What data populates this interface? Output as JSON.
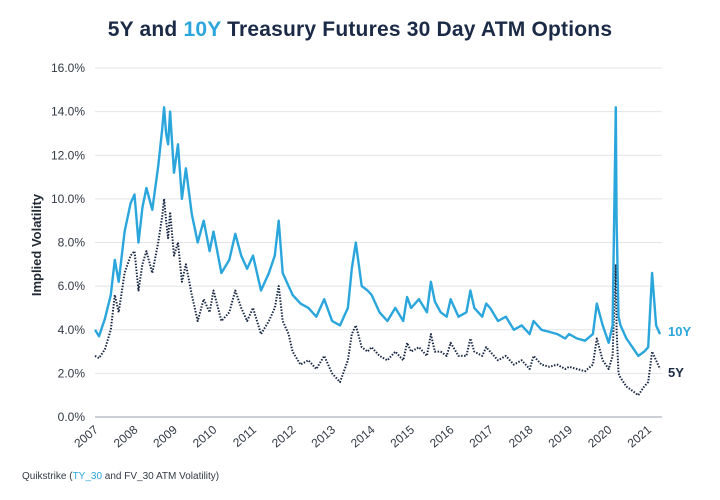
{
  "chart_data": {
    "type": "line",
    "title": {
      "part1": "5Y and ",
      "part2": "10Y",
      "part3": " Treasury Futures 30 Day ATM Options"
    },
    "ylabel": "Implied Volatility",
    "xlabel": "",
    "ylim": [
      0,
      16
    ],
    "xlim": [
      2007.0,
      2021.35
    ],
    "y_ticks": [
      "0.0%",
      "2.0%",
      "4.0%",
      "6.0%",
      "8.0%",
      "10.0%",
      "12.0%",
      "14.0%",
      "16.0%"
    ],
    "y_tick_values": [
      0,
      2,
      4,
      6,
      8,
      10,
      12,
      14,
      16
    ],
    "x_ticks": [
      "2007",
      "2008",
      "2009",
      "2010",
      "2011",
      "2012",
      "2013",
      "2014",
      "2015",
      "2016",
      "2017",
      "2018",
      "2019",
      "2020",
      "2021"
    ],
    "x_tick_values": [
      2007,
      2008,
      2009,
      2010,
      2011,
      2012,
      2013,
      2014,
      2015,
      2016,
      2017,
      2018,
      2019,
      2020,
      2021
    ],
    "grid": "horizontal",
    "series": [
      {
        "name": "10Y",
        "color": "#2aa6dc",
        "style": "solid",
        "x": [
          2007.0,
          2007.1,
          2007.25,
          2007.4,
          2007.5,
          2007.6,
          2007.75,
          2007.9,
          2008.0,
          2008.1,
          2008.2,
          2008.3,
          2008.45,
          2008.6,
          2008.7,
          2008.75,
          2008.8,
          2008.85,
          2008.9,
          2009.0,
          2009.1,
          2009.2,
          2009.3,
          2009.45,
          2009.6,
          2009.75,
          2009.9,
          2010.0,
          2010.2,
          2010.4,
          2010.55,
          2010.7,
          2010.85,
          2011.0,
          2011.2,
          2011.4,
          2011.55,
          2011.65,
          2011.75,
          2011.9,
          2012.0,
          2012.2,
          2012.4,
          2012.6,
          2012.8,
          2013.0,
          2013.2,
          2013.4,
          2013.5,
          2013.6,
          2013.75,
          2013.9,
          2014.0,
          2014.2,
          2014.4,
          2014.6,
          2014.8,
          2014.9,
          2015.0,
          2015.2,
          2015.4,
          2015.5,
          2015.6,
          2015.75,
          2015.9,
          2016.0,
          2016.2,
          2016.4,
          2016.5,
          2016.6,
          2016.8,
          2016.9,
          2017.0,
          2017.2,
          2017.4,
          2017.6,
          2017.8,
          2018.0,
          2018.1,
          2018.3,
          2018.5,
          2018.7,
          2018.9,
          2019.0,
          2019.2,
          2019.4,
          2019.6,
          2019.7,
          2019.85,
          2020.0,
          2020.1,
          2020.18,
          2020.2,
          2020.25,
          2020.3,
          2020.45,
          2020.6,
          2020.75,
          2020.9,
          2021.0,
          2021.1,
          2021.2,
          2021.3
        ],
        "values": [
          4.0,
          3.7,
          4.5,
          5.6,
          7.2,
          6.2,
          8.5,
          9.8,
          10.2,
          8.0,
          9.6,
          10.5,
          9.5,
          11.5,
          13.2,
          14.2,
          13.0,
          12.5,
          14.0,
          11.2,
          12.5,
          10.0,
          11.4,
          9.3,
          8.0,
          9.0,
          7.6,
          8.5,
          6.6,
          7.2,
          8.4,
          7.4,
          6.8,
          7.4,
          5.8,
          6.6,
          7.4,
          9.0,
          6.6,
          6.0,
          5.6,
          5.2,
          5.0,
          4.6,
          5.4,
          4.4,
          4.2,
          5.0,
          6.8,
          8.0,
          6.0,
          5.8,
          5.6,
          4.8,
          4.4,
          5.0,
          4.4,
          5.5,
          5.0,
          5.4,
          4.8,
          6.2,
          5.3,
          4.8,
          4.6,
          5.4,
          4.6,
          4.8,
          5.8,
          5.0,
          4.6,
          5.2,
          5.0,
          4.4,
          4.6,
          4.0,
          4.2,
          3.8,
          4.4,
          4.0,
          3.9,
          3.8,
          3.6,
          3.8,
          3.6,
          3.5,
          3.8,
          5.2,
          4.2,
          3.4,
          4.2,
          14.2,
          9.0,
          4.6,
          4.2,
          3.6,
          3.2,
          2.8,
          3.0,
          3.2,
          6.6,
          4.2,
          3.8
        ],
        "end_label": "10Y"
      },
      {
        "name": "5Y",
        "color": "#1b2a46",
        "style": "dotted",
        "x": [
          2007.0,
          2007.1,
          2007.25,
          2007.4,
          2007.5,
          2007.6,
          2007.75,
          2007.9,
          2008.0,
          2008.1,
          2008.2,
          2008.3,
          2008.45,
          2008.6,
          2008.7,
          2008.75,
          2008.8,
          2008.85,
          2008.9,
          2009.0,
          2009.1,
          2009.2,
          2009.3,
          2009.45,
          2009.6,
          2009.75,
          2009.9,
          2010.0,
          2010.2,
          2010.4,
          2010.55,
          2010.7,
          2010.85,
          2011.0,
          2011.2,
          2011.4,
          2011.55,
          2011.65,
          2011.75,
          2011.9,
          2012.0,
          2012.2,
          2012.4,
          2012.6,
          2012.8,
          2013.0,
          2013.2,
          2013.4,
          2013.5,
          2013.6,
          2013.75,
          2013.9,
          2014.0,
          2014.2,
          2014.4,
          2014.6,
          2014.8,
          2014.9,
          2015.0,
          2015.2,
          2015.4,
          2015.5,
          2015.6,
          2015.75,
          2015.9,
          2016.0,
          2016.2,
          2016.4,
          2016.5,
          2016.6,
          2016.8,
          2016.9,
          2017.0,
          2017.2,
          2017.4,
          2017.6,
          2017.8,
          2018.0,
          2018.1,
          2018.3,
          2018.5,
          2018.7,
          2018.9,
          2019.0,
          2019.2,
          2019.4,
          2019.6,
          2019.7,
          2019.85,
          2020.0,
          2020.1,
          2020.18,
          2020.2,
          2020.25,
          2020.3,
          2020.45,
          2020.6,
          2020.75,
          2020.9,
          2021.0,
          2021.1,
          2021.2,
          2021.3
        ],
        "values": [
          2.8,
          2.7,
          3.1,
          4.0,
          5.6,
          4.8,
          6.6,
          7.4,
          7.6,
          5.8,
          7.0,
          7.6,
          6.6,
          8.0,
          9.2,
          10.0,
          9.0,
          8.2,
          9.4,
          7.4,
          8.0,
          6.2,
          7.0,
          5.6,
          4.4,
          5.4,
          4.8,
          5.8,
          4.4,
          4.8,
          5.8,
          5.0,
          4.4,
          5.0,
          3.8,
          4.4,
          5.0,
          6.0,
          4.4,
          3.8,
          3.0,
          2.4,
          2.6,
          2.2,
          2.8,
          2.0,
          1.6,
          2.6,
          3.8,
          4.2,
          3.2,
          3.0,
          3.2,
          2.8,
          2.6,
          3.0,
          2.6,
          3.4,
          3.0,
          3.2,
          2.8,
          3.8,
          3.0,
          3.0,
          2.8,
          3.4,
          2.8,
          2.8,
          3.6,
          3.0,
          2.8,
          3.2,
          3.0,
          2.6,
          2.8,
          2.4,
          2.6,
          2.2,
          2.8,
          2.4,
          2.3,
          2.4,
          2.2,
          2.3,
          2.2,
          2.1,
          2.4,
          3.6,
          2.6,
          2.2,
          2.8,
          7.0,
          4.0,
          2.0,
          1.8,
          1.4,
          1.2,
          1.0,
          1.4,
          1.6,
          3.0,
          2.6,
          2.2
        ],
        "end_label": "5Y"
      }
    ]
  },
  "source": {
    "prefix": "Quikstrike (",
    "ty": "TY_30",
    "rest": " and FV_30 ATM Volatility)"
  }
}
